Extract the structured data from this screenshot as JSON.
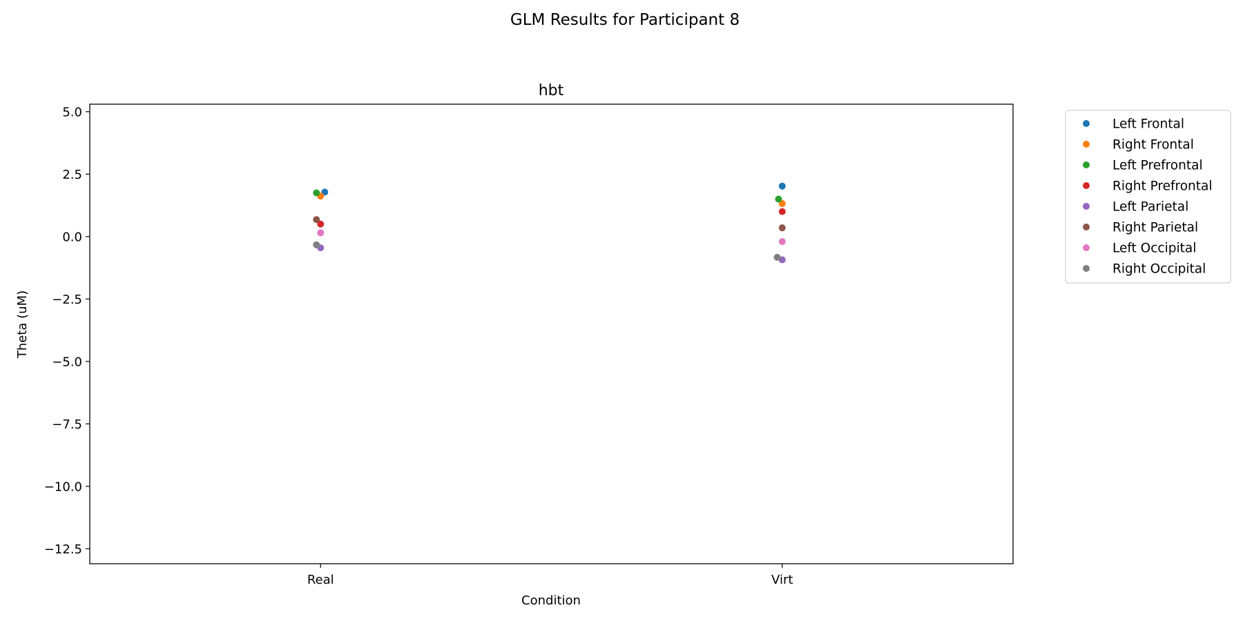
{
  "chart_data": {
    "type": "scatter",
    "suptitle": "GLM Results for Participant 8",
    "title": "hbt",
    "xlabel": "Condition",
    "ylabel": "Theta (uM)",
    "categories": [
      "Real",
      "Virt"
    ],
    "ylim": [
      -13.1,
      5.3
    ],
    "yticks": [
      5.0,
      2.5,
      0.0,
      -2.5,
      -5.0,
      -7.5,
      -10.0,
      -12.5
    ],
    "ytick_labels": [
      "5.0",
      "2.5",
      "0.0",
      "−2.5",
      "−5.0",
      "−7.5",
      "−10.0",
      "−12.5"
    ],
    "grid": false,
    "legend_position": "outside-right",
    "series": [
      {
        "name": "Left Frontal",
        "color": "#1f77b4",
        "values": [
          1.78,
          2.02
        ],
        "jitter": [
          0.09,
          0.0
        ]
      },
      {
        "name": "Right Frontal",
        "color": "#ff7f0e",
        "values": [
          1.62,
          1.32
        ],
        "jitter": [
          0.0,
          0.0
        ]
      },
      {
        "name": "Left Prefrontal",
        "color": "#2ca02c",
        "values": [
          1.75,
          1.5
        ],
        "jitter": [
          -0.09,
          -0.08
        ]
      },
      {
        "name": "Right Prefrontal",
        "color": "#d62728",
        "values": [
          0.5,
          1.0
        ],
        "jitter": [
          0.0,
          0.0
        ]
      },
      {
        "name": "Left Parietal",
        "color": "#9467bd",
        "values": [
          -0.45,
          -0.93
        ],
        "jitter": [
          0.0,
          0.0
        ]
      },
      {
        "name": "Right Parietal",
        "color": "#8c564b",
        "values": [
          0.68,
          0.35
        ],
        "jitter": [
          -0.09,
          0.0
        ]
      },
      {
        "name": "Left Occipital",
        "color": "#e377c2",
        "values": [
          0.15,
          -0.2
        ],
        "jitter": [
          0.0,
          0.0
        ]
      },
      {
        "name": "Right Occipital",
        "color": "#7f7f7f",
        "values": [
          -0.33,
          -0.83
        ],
        "jitter": [
          -0.09,
          -0.11
        ]
      }
    ]
  }
}
